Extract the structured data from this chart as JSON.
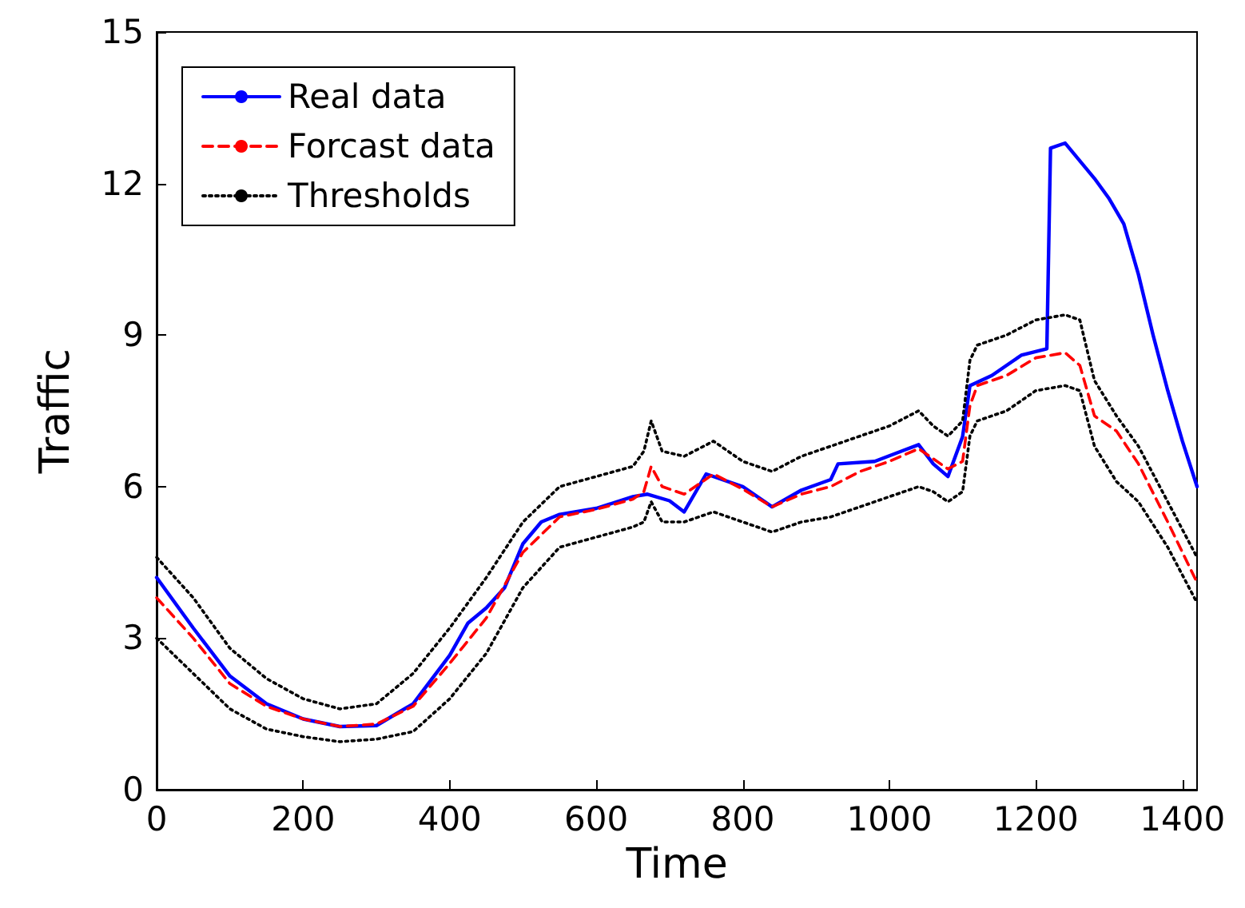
{
  "chart_data": {
    "type": "line",
    "xlabel": "Time",
    "ylabel": "Traffic",
    "xlim": [
      0,
      1420
    ],
    "xticks": [
      0,
      200,
      400,
      600,
      800,
      1000,
      1200,
      1400
    ],
    "ylim": [
      0,
      15
    ],
    "yticks": [
      0,
      3,
      6,
      9,
      12,
      15
    ],
    "grid": false,
    "legend": "top left",
    "series": [
      {
        "name": "Real data",
        "color": "#0000ff",
        "line_style": "solid",
        "x": [
          0,
          50,
          100,
          150,
          200,
          250,
          300,
          350,
          400,
          425,
          450,
          475,
          500,
          525,
          550,
          600,
          650,
          670,
          700,
          720,
          750,
          800,
          840,
          880,
          920,
          930,
          980,
          1020,
          1040,
          1060,
          1080,
          1100,
          1110,
          1140,
          1180,
          1215,
          1220,
          1240,
          1280,
          1300,
          1320,
          1340,
          1360,
          1380,
          1400,
          1420
        ],
        "values": [
          4.2,
          3.2,
          2.25,
          1.7,
          1.4,
          1.25,
          1.27,
          1.7,
          2.66,
          3.3,
          3.6,
          4.0,
          4.87,
          5.3,
          5.45,
          5.57,
          5.8,
          5.85,
          5.72,
          5.5,
          6.25,
          6.0,
          5.6,
          5.93,
          6.14,
          6.45,
          6.5,
          6.72,
          6.83,
          6.45,
          6.2,
          6.99,
          8.0,
          8.2,
          8.6,
          8.73,
          12.7,
          12.8,
          12.1,
          11.7,
          11.2,
          10.2,
          9.0,
          7.9,
          6.9,
          6.0
        ]
      },
      {
        "name": "Forcast data",
        "color": "#ff0000",
        "line_style": "dashed",
        "x": [
          0,
          50,
          100,
          150,
          200,
          250,
          300,
          350,
          400,
          450,
          500,
          550,
          600,
          650,
          665,
          675,
          690,
          720,
          760,
          800,
          840,
          880,
          920,
          960,
          1000,
          1040,
          1060,
          1080,
          1100,
          1110,
          1120,
          1160,
          1200,
          1240,
          1260,
          1280,
          1310,
          1340,
          1380,
          1420
        ],
        "values": [
          3.8,
          3.0,
          2.1,
          1.65,
          1.4,
          1.25,
          1.3,
          1.65,
          2.5,
          3.4,
          4.7,
          5.4,
          5.55,
          5.75,
          5.9,
          6.4,
          6.0,
          5.85,
          6.25,
          5.95,
          5.6,
          5.85,
          6.0,
          6.3,
          6.5,
          6.75,
          6.55,
          6.35,
          6.5,
          7.6,
          8.0,
          8.2,
          8.55,
          8.65,
          8.4,
          7.4,
          7.1,
          6.45,
          5.3,
          4.1
        ]
      },
      {
        "name": "Thresholds",
        "color": "#000000",
        "line_style": "dotted",
        "x": [
          0,
          50,
          100,
          150,
          200,
          250,
          300,
          350,
          400,
          450,
          500,
          550,
          600,
          650,
          665,
          675,
          690,
          720,
          760,
          800,
          840,
          880,
          920,
          960,
          1000,
          1040,
          1060,
          1080,
          1100,
          1110,
          1120,
          1160,
          1200,
          1240,
          1260,
          1280,
          1310,
          1340,
          1380,
          1420
        ],
        "values": [
          4.6,
          3.8,
          2.8,
          2.2,
          1.8,
          1.6,
          1.7,
          2.3,
          3.2,
          4.2,
          5.3,
          6.0,
          6.2,
          6.4,
          6.7,
          7.3,
          6.7,
          6.6,
          6.9,
          6.5,
          6.3,
          6.6,
          6.8,
          7.0,
          7.2,
          7.5,
          7.2,
          7.0,
          7.3,
          8.5,
          8.8,
          9.0,
          9.3,
          9.4,
          9.3,
          8.1,
          7.4,
          6.8,
          5.7,
          4.6
        ]
      },
      {
        "color": "#000000",
        "line_style": "dotted",
        "x": [
          0,
          50,
          100,
          150,
          200,
          250,
          300,
          350,
          400,
          450,
          500,
          550,
          600,
          650,
          665,
          675,
          690,
          720,
          760,
          800,
          840,
          880,
          920,
          960,
          1000,
          1040,
          1060,
          1080,
          1100,
          1110,
          1120,
          1160,
          1200,
          1240,
          1260,
          1280,
          1310,
          1340,
          1380,
          1420
        ],
        "values": [
          3.0,
          2.3,
          1.6,
          1.2,
          1.05,
          0.95,
          1.0,
          1.15,
          1.8,
          2.7,
          4.0,
          4.8,
          5.0,
          5.2,
          5.3,
          5.7,
          5.3,
          5.3,
          5.5,
          5.3,
          5.1,
          5.3,
          5.4,
          5.6,
          5.8,
          6.0,
          5.9,
          5.7,
          5.9,
          7.0,
          7.3,
          7.5,
          7.9,
          8.0,
          7.9,
          6.8,
          6.1,
          5.7,
          4.8,
          3.7
        ]
      }
    ]
  }
}
